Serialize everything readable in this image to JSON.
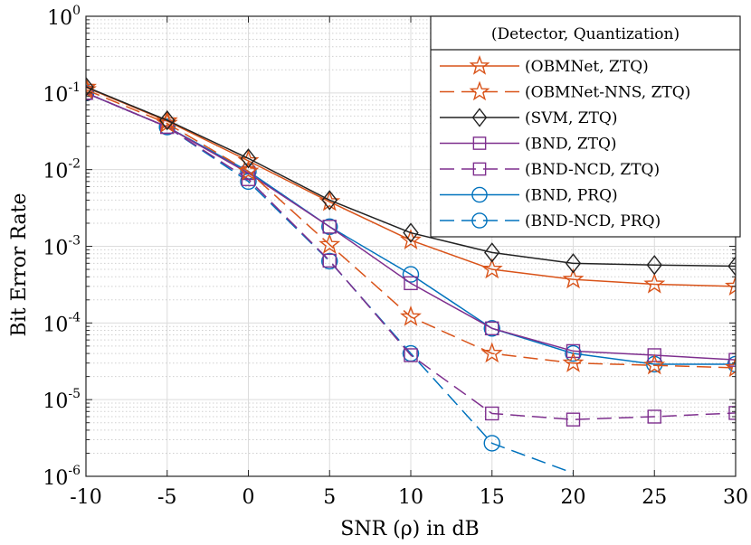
{
  "chart_data": {
    "type": "line",
    "title": "",
    "xlabel": "SNR (ρ) in dB",
    "ylabel": "Bit Error Rate",
    "yscale": "log",
    "xlim": [
      -10,
      30
    ],
    "ylim": [
      1e-06,
      1
    ],
    "grid": true,
    "x": [
      -10,
      -5,
      0,
      5,
      10,
      15,
      20,
      25,
      30
    ],
    "x_tick_labels": [
      "-10",
      "-5",
      "0",
      "5",
      "10",
      "15",
      "20",
      "25",
      "30"
    ],
    "y_ticks": [
      {
        "base": "10",
        "exp": "0",
        "value": 1
      },
      {
        "base": "10",
        "exp": "-1",
        "value": 0.1
      },
      {
        "base": "10",
        "exp": "-2",
        "value": 0.01
      },
      {
        "base": "10",
        "exp": "-3",
        "value": 0.001
      },
      {
        "base": "10",
        "exp": "-4",
        "value": 0.0001
      },
      {
        "base": "10",
        "exp": "-5",
        "value": 1e-05
      },
      {
        "base": "10",
        "exp": "-6",
        "value": 1e-06
      }
    ],
    "legend_title": "(Detector, Quantization)",
    "legend_position": "top-right",
    "series": [
      {
        "name": "(OBMNet, ZTQ)",
        "color": "#d95319",
        "dash": "solid",
        "marker": "star",
        "values": [
          0.118,
          0.043,
          0.013,
          0.0038,
          0.0012,
          0.0005,
          0.00037,
          0.00032,
          0.0003
        ]
      },
      {
        "name": "(OBMNet-NNS, ZTQ)",
        "color": "#d95319",
        "dash": "dashed",
        "marker": "star",
        "values": [
          0.11,
          0.04,
          0.0095,
          0.00105,
          0.00012,
          4e-05,
          3e-05,
          2.8e-05,
          2.6e-05
        ]
      },
      {
        "name": "(SVM, ZTQ)",
        "color": "#222222",
        "dash": "solid",
        "marker": "diamond",
        "values": [
          0.12,
          0.044,
          0.014,
          0.004,
          0.0015,
          0.00083,
          0.0006,
          0.00057,
          0.00055
        ]
      },
      {
        "name": "(BND, ZTQ)",
        "color": "#7e2f8e",
        "dash": "solid",
        "marker": "square",
        "values": [
          0.1,
          0.036,
          0.009,
          0.0018,
          0.00033,
          8.5e-05,
          4.3e-05,
          3.8e-05,
          3.3e-05
        ]
      },
      {
        "name": "(BND-NCD, ZTQ)",
        "color": "#7e2f8e",
        "dash": "dashed",
        "marker": "square",
        "values": [
          0.1,
          0.036,
          0.0075,
          0.00065,
          3.8e-05,
          6.6e-06,
          5.5e-06,
          6e-06,
          6.7e-06
        ]
      },
      {
        "name": "(BND, PRQ)",
        "color": "#0072bd",
        "dash": "solid",
        "marker": "circle",
        "values": [
          0.1,
          0.036,
          0.0095,
          0.0018,
          0.00043,
          8.5e-05,
          4e-05,
          2.9e-05,
          2.9e-05
        ]
      },
      {
        "name": "(BND-NCD, PRQ)",
        "color": "#0072bd",
        "dash": "dashed",
        "marker": "circle",
        "values": [
          0.1,
          0.036,
          0.007,
          0.00064,
          4e-05,
          2.7e-06,
          1.1e-06,
          null,
          null
        ],
        "marker_mask": [
          true,
          true,
          true,
          true,
          true,
          true,
          false,
          false,
          false
        ]
      }
    ]
  }
}
